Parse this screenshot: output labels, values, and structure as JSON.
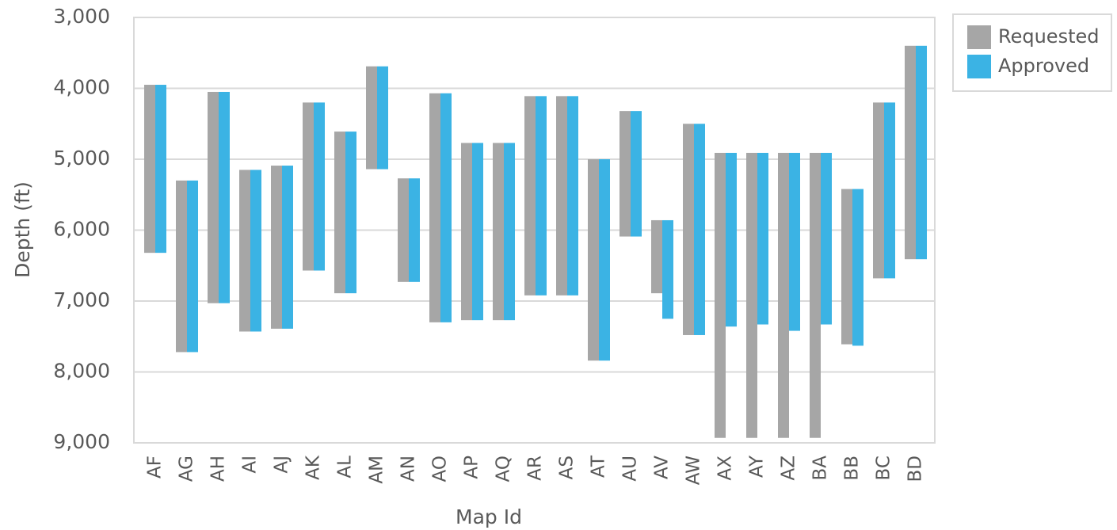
{
  "chart_data": {
    "type": "floating-bar",
    "y_label": "Depth (ft)",
    "x_label": "Map Id",
    "categories": [
      "AF",
      "AG",
      "AH",
      "AI",
      "AJ",
      "AK",
      "AL",
      "AM",
      "AN",
      "AO",
      "AP",
      "AQ",
      "AR",
      "AS",
      "AT",
      "AU",
      "AV",
      "AW",
      "AX",
      "AY",
      "AZ",
      "BA",
      "BB",
      "BC",
      "BD"
    ],
    "series": [
      {
        "name": "Requested",
        "color": "#a6a6a6",
        "top": [
          3950,
          5300,
          4050,
          5150,
          5090,
          4200,
          4610,
          3690,
          5270,
          4070,
          4770,
          4770,
          4110,
          4110,
          5000,
          4320,
          5860,
          4500,
          4910,
          4910,
          4910,
          4910,
          5420,
          4200,
          3400
        ],
        "bottom": [
          6320,
          7720,
          7030,
          7430,
          7390,
          6570,
          6890,
          5140,
          6730,
          7300,
          7270,
          7270,
          6920,
          6920,
          7840,
          6090,
          6890,
          7480,
          8930,
          8930,
          8930,
          8930,
          7610,
          6680,
          6410
        ]
      },
      {
        "name": "Approved",
        "color": "#3bb3e4",
        "top": [
          3950,
          5300,
          4050,
          5150,
          5090,
          4200,
          4610,
          3690,
          5270,
          4070,
          4770,
          4770,
          4110,
          4110,
          5000,
          4320,
          5860,
          4500,
          4910,
          4910,
          4910,
          4910,
          5420,
          4200,
          3400
        ],
        "bottom": [
          6320,
          7720,
          7030,
          7430,
          7390,
          6570,
          6890,
          5140,
          6730,
          7300,
          7270,
          7270,
          6920,
          6920,
          7840,
          6090,
          7250,
          7480,
          7360,
          7330,
          7420,
          7330,
          7630,
          6680,
          6410
        ]
      }
    ],
    "ylim": [
      3000,
      9000
    ],
    "y_inverted": true,
    "yticks": [
      {
        "value": 3000,
        "label": "3,000"
      },
      {
        "value": 4000,
        "label": "4,000"
      },
      {
        "value": 5000,
        "label": "5,000"
      },
      {
        "value": 6000,
        "label": "6,000"
      },
      {
        "value": 7000,
        "label": "7,000"
      },
      {
        "value": 8000,
        "label": "8,000"
      },
      {
        "value": 9000,
        "label": "9,000"
      }
    ],
    "grid": true,
    "legend": "right"
  }
}
